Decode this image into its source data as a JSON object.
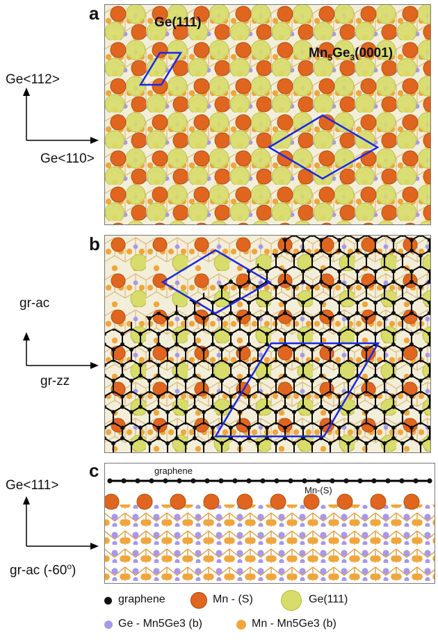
{
  "panels": {
    "a": {
      "label": "a",
      "region_label_left": "Ge(111)",
      "region_label_right_main": "Mn",
      "region_label_right_sub1": "5",
      "region_label_right_mid": "Ge",
      "region_label_right_sub2": "3",
      "region_label_right_end": "(0001)",
      "axis_up": "Ge<112>",
      "axis_right": "Ge<110>"
    },
    "b": {
      "label": "b",
      "axis_up": "gr-ac",
      "axis_right": "gr-zz"
    },
    "c": {
      "label": "c",
      "layer_top": "graphene",
      "layer_mn": "Mn-(S)",
      "axis_up": "Ge<111>",
      "axis_right": "gr-ac (-60",
      "axis_right_sup": "o",
      "axis_right_end": ")"
    }
  },
  "legend": {
    "items": [
      {
        "label": "graphene",
        "color": "#111111"
      },
      {
        "label": "Mn - (S)",
        "color": "#e0661f"
      },
      {
        "label": "Ge(111)",
        "color": "#d7dc6a"
      },
      {
        "label": "Ge - Mn5Ge3 (b)",
        "color": "#a898e8"
      },
      {
        "label": "Mn - Mn5Ge3 (b)",
        "color": "#f0a63c"
      }
    ]
  },
  "colors": {
    "graphene": "#111111",
    "mn_s": "#e0661f",
    "ge111": "#d7dc6a",
    "ge_b": "#a898e8",
    "mn_b": "#f0a63c",
    "cell_outline": "#1a28e6"
  }
}
